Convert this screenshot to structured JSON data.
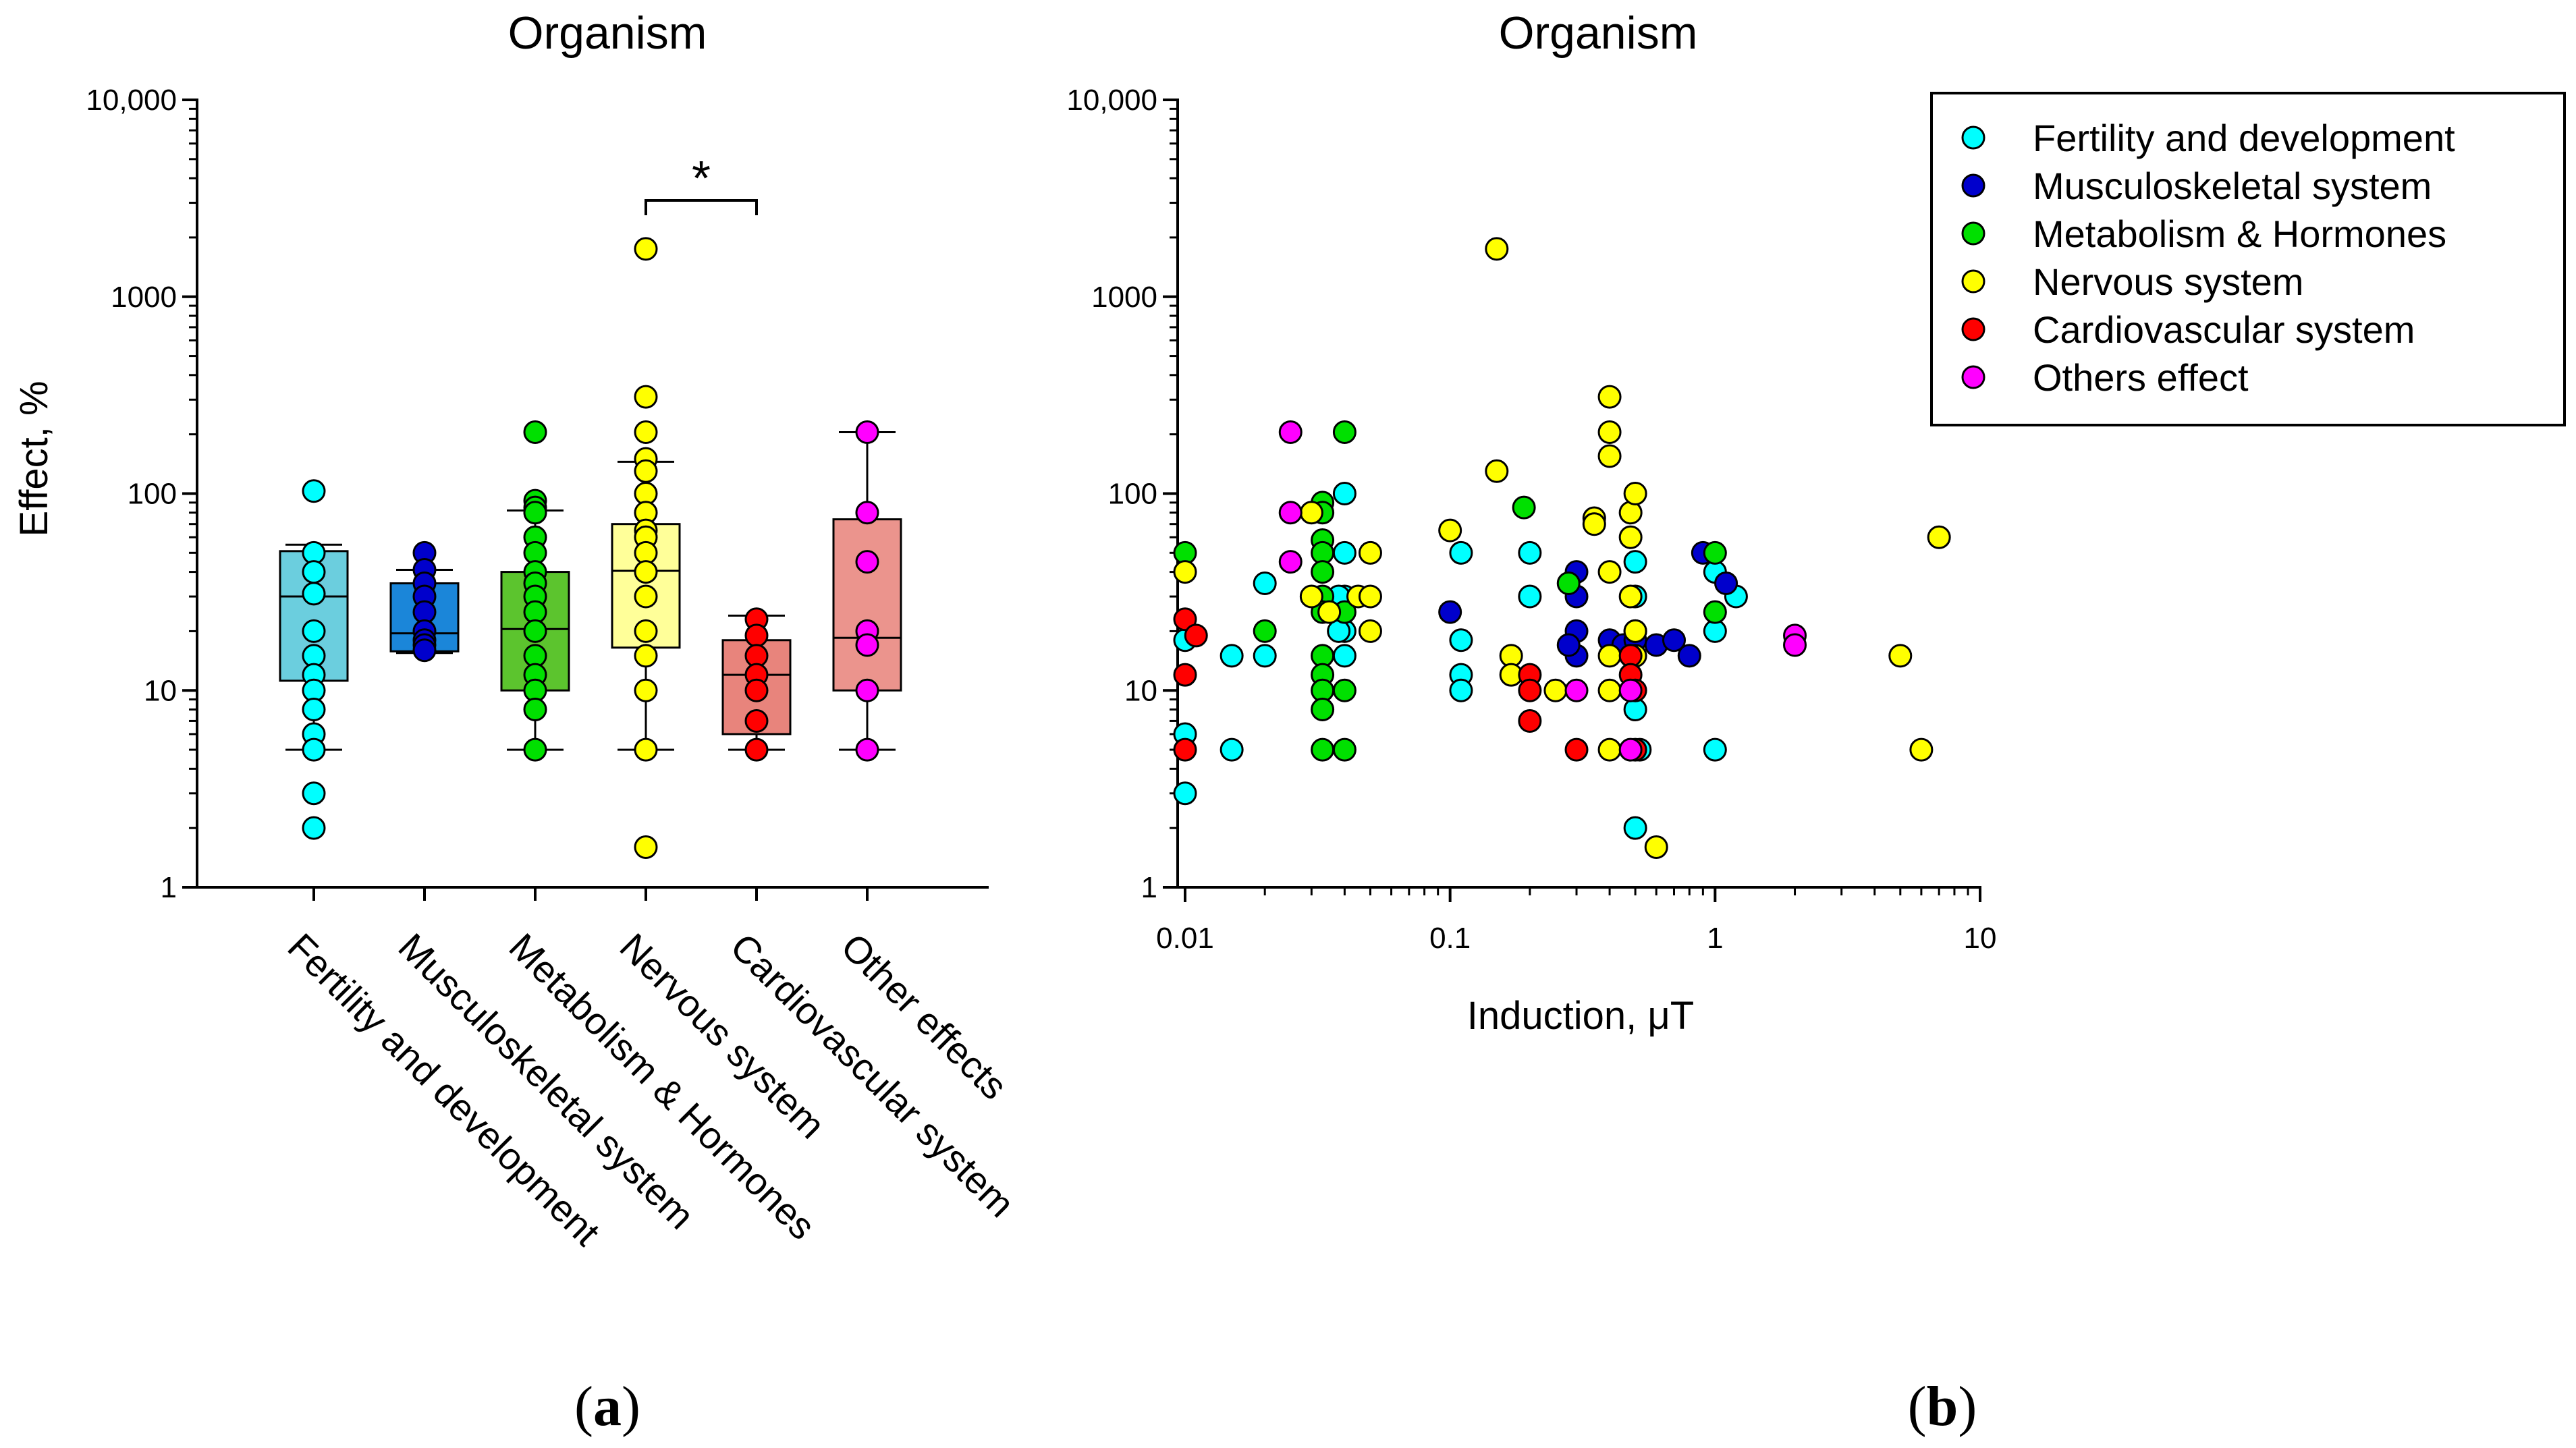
{
  "panel_a_label": "a",
  "panel_b_label": "b",
  "chart_data": [
    {
      "type": "box",
      "title": "Organism",
      "xlabel": "",
      "ylabel": "Effect, %",
      "yscale": "log",
      "ylim": [
        1,
        10000
      ],
      "yticks": [
        1,
        10,
        100,
        1000,
        10000
      ],
      "ytick_labels": [
        "1",
        "10",
        "100",
        "1000",
        "10,000"
      ],
      "categories": [
        "Fertility and development",
        "Musculoskeletal system",
        "Metabolism & Hormones",
        "Nervous system",
        "Cardiovascular system",
        "Other effects"
      ],
      "boxes": [
        {
          "name": "Fertility and development",
          "color": "#00FFFF",
          "box_color": "#6BCEDE",
          "q1": 11.2,
          "median": 30,
          "q3": 51,
          "whisker_low": 5,
          "whisker_high": 55,
          "points": [
            103,
            50,
            40,
            31,
            20,
            15,
            12,
            10,
            8,
            6,
            5,
            3,
            2
          ]
        },
        {
          "name": "Musculoskeletal system",
          "color": "#0000CC",
          "box_color": "#1B86D9",
          "q1": 15.8,
          "median": 19.5,
          "q3": 35,
          "whisker_low": 15.5,
          "whisker_high": 41,
          "points": [
            50,
            41,
            35,
            30,
            25,
            20,
            18,
            17,
            16
          ]
        },
        {
          "name": "Metabolism & Hormones",
          "color": "#00E000",
          "box_color": "#5CC42E",
          "q1": 10,
          "median": 20.5,
          "q3": 40,
          "whisker_low": 5,
          "whisker_high": 82,
          "points": [
            205,
            92,
            85,
            80,
            60,
            50,
            40,
            35,
            30,
            25,
            20,
            15,
            12,
            10,
            8,
            5
          ]
        },
        {
          "name": "Nervous system",
          "color": "#FFFF00",
          "box_color": "#FFFF99",
          "q1": 16.5,
          "median": 40.5,
          "q3": 70,
          "whisker_low": 5,
          "whisker_high": 145,
          "points": [
            1750,
            310,
            205,
            150,
            130,
            100,
            80,
            65,
            60,
            50,
            40,
            30,
            20,
            15,
            10,
            5,
            1.6
          ]
        },
        {
          "name": "Cardiovascular system",
          "color": "#FF0000",
          "box_color": "#E8847C",
          "q1": 6,
          "median": 12,
          "q3": 18,
          "whisker_low": 5,
          "whisker_high": 24,
          "points": [
            23,
            19,
            15,
            12,
            10,
            7,
            5
          ]
        },
        {
          "name": "Other effects",
          "color": "#FF00FF",
          "box_color": "#EB948D",
          "q1": 10,
          "median": 18.5,
          "q3": 74,
          "whisker_low": 5,
          "whisker_high": 205,
          "points": [
            205,
            80,
            45,
            20,
            17,
            10,
            5
          ]
        }
      ],
      "annotation": {
        "text": "*",
        "from": "Nervous system",
        "to": "Cardiovascular system"
      }
    },
    {
      "type": "scatter",
      "title": "Organism",
      "xlabel": "Induction, μT",
      "ylabel": "",
      "xscale": "log",
      "yscale": "log",
      "xlim": [
        0.01,
        10
      ],
      "ylim": [
        1,
        10000
      ],
      "xticks": [
        0.01,
        0.1,
        1,
        10
      ],
      "xtick_labels": [
        "0.01",
        "0.1",
        "1",
        "10"
      ],
      "yticks": [
        1,
        10,
        100,
        1000,
        10000
      ],
      "ytick_labels": [
        "1",
        "10",
        "100",
        "1000",
        "10,000"
      ],
      "legend": {
        "position": "top-right-outside"
      },
      "series": [
        {
          "name": "Fertility and development",
          "color": "#00FFFF",
          "points": [
            [
              0.01,
              18
            ],
            [
              0.01,
              6
            ],
            [
              0.01,
              3
            ],
            [
              0.015,
              15
            ],
            [
              0.015,
              5
            ],
            [
              0.02,
              35
            ],
            [
              0.02,
              15
            ],
            [
              0.04,
              100
            ],
            [
              0.04,
              50
            ],
            [
              0.04,
              30
            ],
            [
              0.04,
              20
            ],
            [
              0.04,
              15
            ],
            [
              0.038,
              30
            ],
            [
              0.038,
              20
            ],
            [
              0.11,
              50
            ],
            [
              0.11,
              18
            ],
            [
              0.11,
              12
            ],
            [
              0.11,
              10
            ],
            [
              0.2,
              50
            ],
            [
              0.2,
              30
            ],
            [
              0.5,
              45
            ],
            [
              0.5,
              30
            ],
            [
              0.5,
              20
            ],
            [
              0.5,
              8
            ],
            [
              0.5,
              2
            ],
            [
              0.52,
              5
            ],
            [
              1.0,
              40
            ],
            [
              1.0,
              20
            ],
            [
              1.0,
              5
            ],
            [
              1.2,
              30
            ]
          ]
        },
        {
          "name": "Musculoskeletal system",
          "color": "#0000CC",
          "points": [
            [
              0.1,
              25
            ],
            [
              0.3,
              40
            ],
            [
              0.3,
              30
            ],
            [
              0.3,
              20
            ],
            [
              0.3,
              15
            ],
            [
              0.28,
              17
            ],
            [
              0.4,
              18
            ],
            [
              0.45,
              17
            ],
            [
              0.5,
              18
            ],
            [
              0.6,
              17
            ],
            [
              0.7,
              18
            ],
            [
              0.8,
              15
            ],
            [
              0.9,
              50
            ],
            [
              1.1,
              35
            ]
          ]
        },
        {
          "name": "Metabolism & Hormones",
          "color": "#00E000",
          "points": [
            [
              0.01,
              50
            ],
            [
              0.02,
              20
            ],
            [
              0.033,
              90
            ],
            [
              0.033,
              80
            ],
            [
              0.033,
              58
            ],
            [
              0.033,
              50
            ],
            [
              0.033,
              40
            ],
            [
              0.033,
              30
            ],
            [
              0.033,
              25
            ],
            [
              0.033,
              15
            ],
            [
              0.033,
              12
            ],
            [
              0.033,
              10
            ],
            [
              0.033,
              8
            ],
            [
              0.033,
              5
            ],
            [
              0.04,
              205
            ],
            [
              0.04,
              25
            ],
            [
              0.04,
              10
            ],
            [
              0.04,
              5
            ],
            [
              0.19,
              85
            ],
            [
              0.28,
              35
            ],
            [
              1.0,
              50
            ],
            [
              1.0,
              25
            ]
          ]
        },
        {
          "name": "Nervous system",
          "color": "#FFFF00",
          "points": [
            [
              0.01,
              40
            ],
            [
              0.03,
              80
            ],
            [
              0.03,
              30
            ],
            [
              0.035,
              25
            ],
            [
              0.045,
              30
            ],
            [
              0.05,
              50
            ],
            [
              0.05,
              30
            ],
            [
              0.05,
              20
            ],
            [
              0.1,
              65
            ],
            [
              0.15,
              1750
            ],
            [
              0.15,
              130
            ],
            [
              0.17,
              15
            ],
            [
              0.17,
              12
            ],
            [
              0.25,
              10
            ],
            [
              0.35,
              75
            ],
            [
              0.35,
              70
            ],
            [
              0.4,
              310
            ],
            [
              0.4,
              205
            ],
            [
              0.4,
              155
            ],
            [
              0.4,
              40
            ],
            [
              0.4,
              15
            ],
            [
              0.4,
              10
            ],
            [
              0.4,
              5
            ],
            [
              0.48,
              80
            ],
            [
              0.48,
              60
            ],
            [
              0.48,
              30
            ],
            [
              0.5,
              100
            ],
            [
              0.5,
              20
            ],
            [
              0.5,
              15
            ],
            [
              0.6,
              1.6
            ],
            [
              5.0,
              15
            ],
            [
              6.0,
              5
            ],
            [
              7.0,
              60
            ]
          ]
        },
        {
          "name": "Cardiovascular system",
          "color": "#FF0000",
          "points": [
            [
              0.01,
              23
            ],
            [
              0.01,
              12
            ],
            [
              0.01,
              5
            ],
            [
              0.011,
              19
            ],
            [
              0.2,
              12
            ],
            [
              0.2,
              10
            ],
            [
              0.2,
              7
            ],
            [
              0.3,
              5
            ],
            [
              0.48,
              15
            ],
            [
              0.48,
              12
            ],
            [
              0.5,
              10
            ],
            [
              0.5,
              5
            ]
          ]
        },
        {
          "name": "Others effect",
          "color": "#FF00FF",
          "points": [
            [
              0.025,
              205
            ],
            [
              0.025,
              80
            ],
            [
              0.025,
              45
            ],
            [
              0.3,
              10
            ],
            [
              0.48,
              10
            ],
            [
              0.48,
              5
            ],
            [
              2.0,
              19
            ],
            [
              2.0,
              17
            ]
          ]
        }
      ]
    }
  ]
}
